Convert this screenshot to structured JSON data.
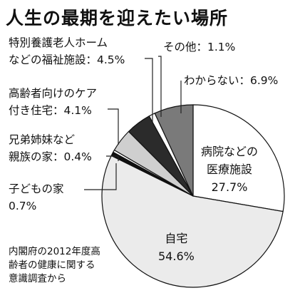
{
  "chart_data": {
    "type": "pie",
    "title": "人生の最期を迎えたい場所",
    "slices": [
      {
        "label": "病院などの医療施設",
        "value": 27.7,
        "value_text": "27.7%",
        "color": "#ffffff"
      },
      {
        "label": "自宅",
        "value": 54.6,
        "value_text": "54.6%",
        "color": "#ebebeb"
      },
      {
        "label": "子どもの家",
        "value": 0.7,
        "value_text": "0.7%",
        "color": "#111111"
      },
      {
        "label": "兄弟姉妹など親族の家",
        "value": 0.4,
        "value_text": "0.4%",
        "color": "#ffffff"
      },
      {
        "label": "高齢者向けのケア付き住宅",
        "value": 4.1,
        "value_text": "4.1%",
        "color": "#cfcfcf"
      },
      {
        "label": "特別養護老人ホームなどの福祉施設",
        "value": 4.5,
        "value_text": "4.5%",
        "color": "#2b2b2b"
      },
      {
        "label": "その他",
        "value": 1.1,
        "value_text": "1.1%",
        "color": "#ffffff"
      },
      {
        "label": "わからない",
        "value": 6.9,
        "value_text": "6.9%",
        "color": "#7a7a7a"
      }
    ],
    "labels": {
      "hospital_l1": "病院などの",
      "hospital_l2": "医療施設",
      "hospital_v": "27.7%",
      "home_l1": "自宅",
      "home_v": "54.6%",
      "child": "子どもの家",
      "child_v": "0.7%",
      "relative_l1": "兄弟姉妹など",
      "relative_l2": "親族の家：0.4%",
      "care_l1": "高齢者向けのケア",
      "care_l2": "付き住宅：4.1%",
      "welfare_l1": "特別養護老人ホーム",
      "welfare_l2": "などの福祉施設：4.5%",
      "other": "その他：1.1%",
      "unknown": "わからない：6.9%"
    },
    "source": [
      "内閣府の2012年度高",
      "齢者の健康に関する",
      "意識調査から"
    ]
  }
}
